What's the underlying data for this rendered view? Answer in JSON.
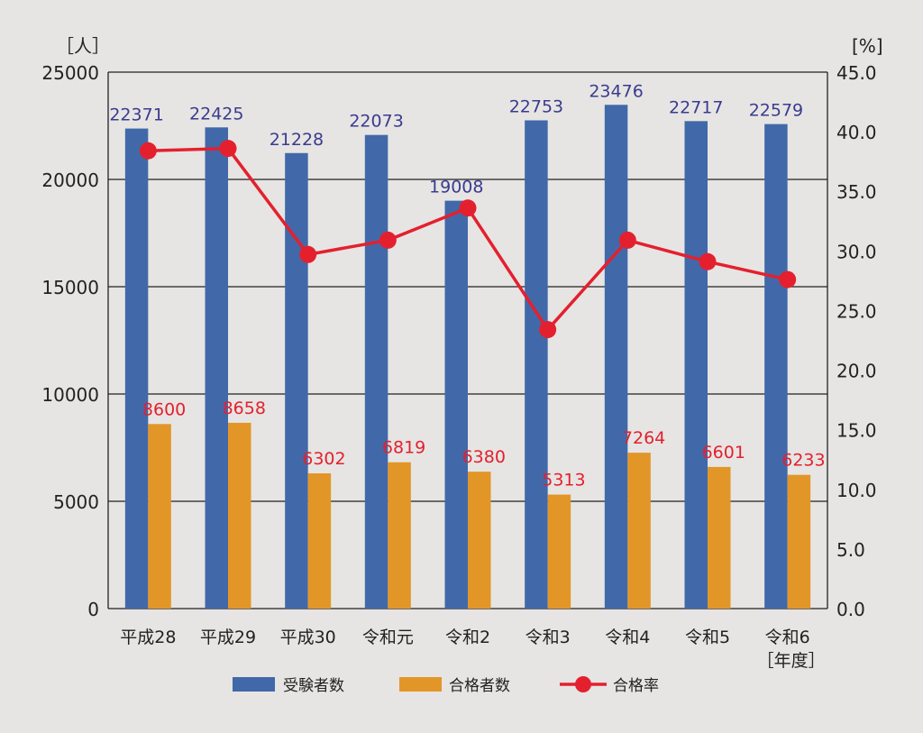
{
  "chart_data": {
    "type": "bar+line",
    "categories": [
      "平成28",
      "平成29",
      "平成30",
      "令和元",
      "令和2",
      "令和3",
      "令和4",
      "令和5",
      "令和6"
    ],
    "x_unit_label": "［年度］",
    "left_unit_label": "［人］",
    "right_unit_label": "[%]",
    "left_ylim": [
      0,
      25000
    ],
    "left_ticks": [
      "0",
      "5000",
      "10000",
      "15000",
      "20000",
      "25000"
    ],
    "right_ylim": [
      0,
      45
    ],
    "right_ticks": [
      "0.0",
      "5.0",
      "10.0",
      "15.0",
      "20.0",
      "25.0",
      "30.0",
      "35.0",
      "40.0",
      "45.0"
    ],
    "grid": true,
    "legend_position": "bottom",
    "series": [
      {
        "name": "受験者数",
        "type": "bar",
        "axis": "left",
        "color": "#4169a9",
        "label_color": "#3b3b8f",
        "values": [
          22371,
          22425,
          21228,
          22073,
          19008,
          22753,
          23476,
          22717,
          22579
        ]
      },
      {
        "name": "合格者数",
        "type": "bar",
        "axis": "left",
        "color": "#e39628",
        "label_color": "#e4202e",
        "values": [
          8600,
          8658,
          6302,
          6819,
          6380,
          5313,
          7264,
          6601,
          6233
        ]
      },
      {
        "name": "合格率",
        "type": "line",
        "axis": "right",
        "color": "#e4202e",
        "values": [
          38.4,
          38.6,
          29.7,
          30.9,
          33.6,
          23.4,
          30.9,
          29.1,
          27.6
        ]
      }
    ]
  }
}
